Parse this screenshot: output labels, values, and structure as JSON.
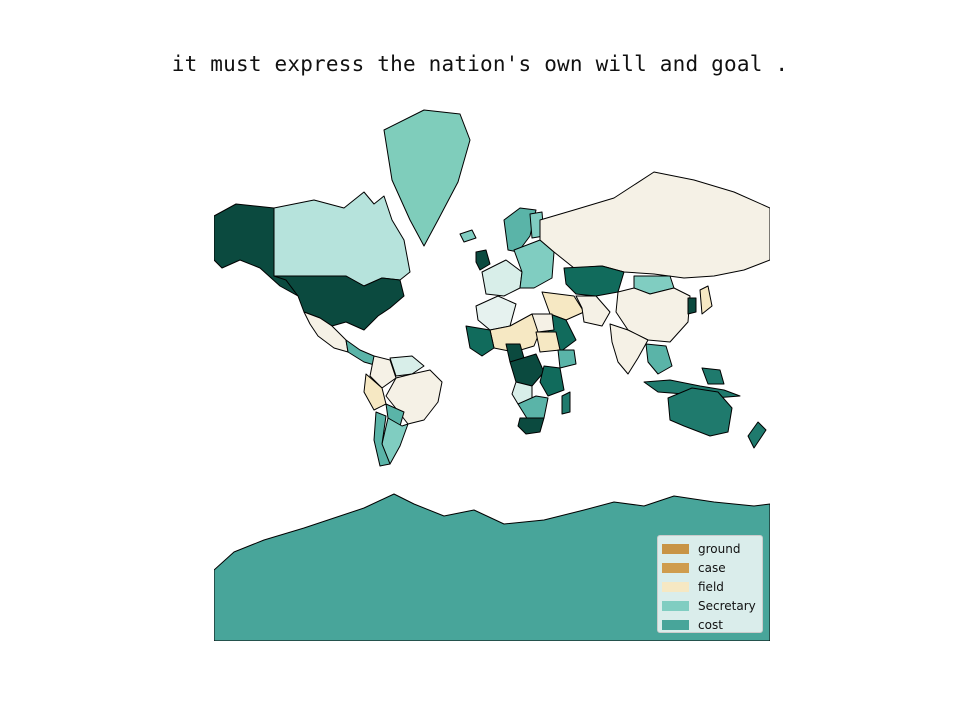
{
  "title": "it must express the nation's own will and goal .",
  "map": {
    "projection": "mercator",
    "ocean_color": "#ffffff",
    "border_color": "#000000",
    "regions": [
      {
        "name": "Alaska",
        "color": "#0b4a3f"
      },
      {
        "name": "Canada",
        "color": "#b6e3dc"
      },
      {
        "name": "Greenland",
        "color": "#7fcdbb"
      },
      {
        "name": "United States",
        "color": "#0b4a3f"
      },
      {
        "name": "Mexico",
        "color": "#f5f1e6"
      },
      {
        "name": "Central America",
        "color": "#5ab4a8"
      },
      {
        "name": "Colombia",
        "color": "#f5f1e6"
      },
      {
        "name": "Venezuela",
        "color": "#d8eee9"
      },
      {
        "name": "Peru",
        "color": "#f6e8c3"
      },
      {
        "name": "Brazil",
        "color": "#f5f1e6"
      },
      {
        "name": "Bolivia",
        "color": "#5ab4a8"
      },
      {
        "name": "Argentina",
        "color": "#80cdc1"
      },
      {
        "name": "Chile",
        "color": "#5ab4a8"
      },
      {
        "name": "Iceland",
        "color": "#80cdc1"
      },
      {
        "name": "United Kingdom",
        "color": "#0b4a3f"
      },
      {
        "name": "Scandinavia",
        "color": "#5ab4a8"
      },
      {
        "name": "Finland",
        "color": "#80cdc1"
      },
      {
        "name": "Western Europe",
        "color": "#d8eee9"
      },
      {
        "name": "Eastern Europe",
        "color": "#80cdc1"
      },
      {
        "name": "Russia",
        "color": "#f5f1e6"
      },
      {
        "name": "Kazakhstan",
        "color": "#116b5c"
      },
      {
        "name": "Mongolia",
        "color": "#80cdc1"
      },
      {
        "name": "China",
        "color": "#f5f1e6"
      },
      {
        "name": "Middle East",
        "color": "#f6e8c3"
      },
      {
        "name": "Saudi Arabia",
        "color": "#116b5c"
      },
      {
        "name": "Iran",
        "color": "#f5f1e6"
      },
      {
        "name": "India",
        "color": "#f5f1e6"
      },
      {
        "name": "Southeast Asia",
        "color": "#5ab4a8"
      },
      {
        "name": "Korea",
        "color": "#0b4a3f"
      },
      {
        "name": "Japan",
        "color": "#f6e8c3"
      },
      {
        "name": "Indonesia",
        "color": "#1f7a6d"
      },
      {
        "name": "Papua New Guinea",
        "color": "#1f7a6d"
      },
      {
        "name": "Australia",
        "color": "#1f7a6d"
      },
      {
        "name": "New Zealand",
        "color": "#1f7a6d"
      },
      {
        "name": "Northwest Africa",
        "color": "#e6f2ef"
      },
      {
        "name": "Sahel",
        "color": "#f6e8c3"
      },
      {
        "name": "West Africa",
        "color": "#116b5c"
      },
      {
        "name": "Nigeria",
        "color": "#0b4a3f"
      },
      {
        "name": "Egypt",
        "color": "#f5f1e6"
      },
      {
        "name": "Sudan",
        "color": "#f6e8c3"
      },
      {
        "name": "Ethiopia",
        "color": "#5ab4a8"
      },
      {
        "name": "Central Africa",
        "color": "#0b4a3f"
      },
      {
        "name": "East Africa",
        "color": "#116b5c"
      },
      {
        "name": "Angola",
        "color": "#d8eee9"
      },
      {
        "name": "Southern Africa",
        "color": "#5ab4a8"
      },
      {
        "name": "South Africa",
        "color": "#0b4a3f"
      },
      {
        "name": "Madagascar",
        "color": "#1f7a6d"
      },
      {
        "name": "Antarctica",
        "color": "#48a59a"
      }
    ]
  },
  "legend": {
    "placement": "bottom-right",
    "items": [
      {
        "label": "ground",
        "color": "#c89445"
      },
      {
        "label": "case",
        "color": "#cf9c4d"
      },
      {
        "label": "field",
        "color": "#f6e8c3"
      },
      {
        "label": "Secretary",
        "color": "#80cdc1"
      },
      {
        "label": "cost",
        "color": "#48a59a"
      }
    ]
  }
}
